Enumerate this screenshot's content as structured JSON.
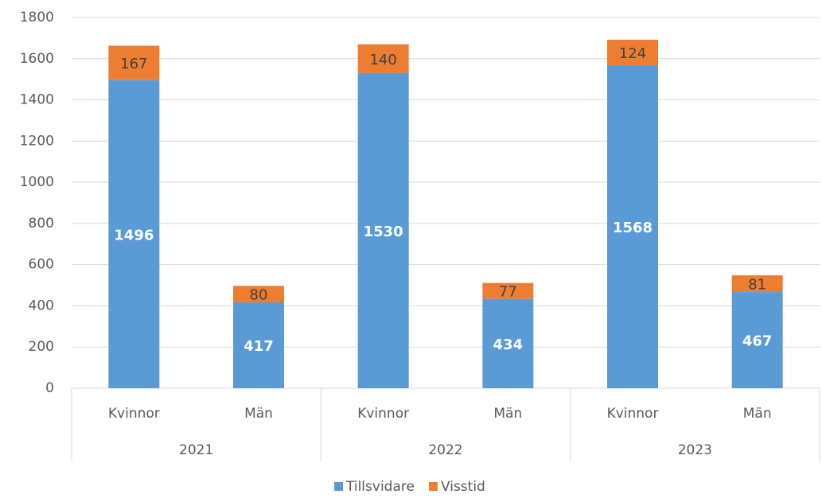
{
  "chart_data": {
    "type": "stacked_bar",
    "categories": [
      "Kvinnor",
      "Män",
      "Kvinnor",
      "Män",
      "Kvinnor",
      "Män"
    ],
    "groups": [
      "2021",
      "2022",
      "2023"
    ],
    "series": [
      {
        "name": "Tillsvidare",
        "color": "#5b9bd5",
        "values": [
          1496,
          417,
          1530,
          434,
          1568,
          467
        ]
      },
      {
        "name": "Visstid",
        "color": "#ed7d31",
        "values": [
          167,
          80,
          140,
          77,
          124,
          81
        ]
      }
    ],
    "ylim": [
      0,
      1800
    ],
    "yticks": [
      0,
      200,
      400,
      600,
      800,
      1000,
      1200,
      1400,
      1600,
      1800
    ],
    "grid": true,
    "legend": "bottom"
  }
}
